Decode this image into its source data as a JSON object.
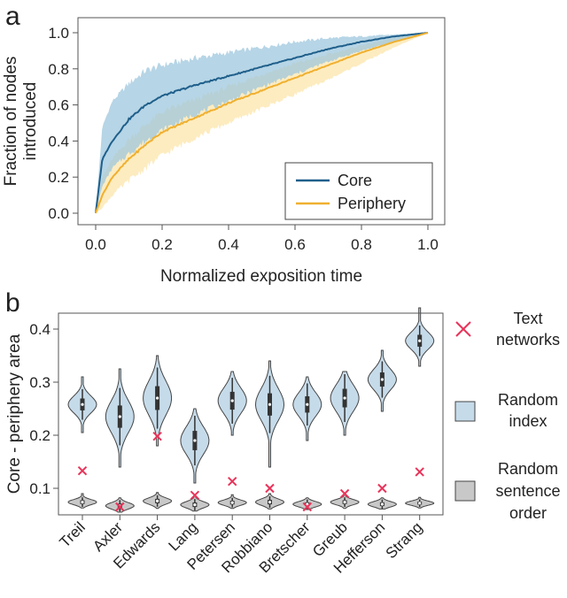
{
  "chart_data": [
    {
      "panel_label": "a",
      "type": "line",
      "xlabel": "Normalized exposition time",
      "ylabel_lines": [
        "Fraction of nodes",
        "introduced"
      ],
      "xlim": [
        0,
        1
      ],
      "ylim": [
        0,
        1
      ],
      "xticks": [
        "0.0",
        "0.2",
        "0.4",
        "0.6",
        "0.8",
        "1.0"
      ],
      "yticks": [
        "0.0",
        "0.2",
        "0.4",
        "0.6",
        "0.8",
        "1.0"
      ],
      "x": [
        0,
        0.02,
        0.05,
        0.1,
        0.15,
        0.2,
        0.3,
        0.4,
        0.5,
        0.6,
        0.7,
        0.8,
        0.9,
        1.0
      ],
      "series": [
        {
          "name": "Core",
          "color": "#1f5f8b",
          "band_color": "#9ec7de",
          "values": [
            0,
            0.3,
            0.4,
            0.52,
            0.6,
            0.65,
            0.71,
            0.76,
            0.81,
            0.86,
            0.91,
            0.95,
            0.98,
            1.0
          ],
          "lower": [
            0,
            0.15,
            0.25,
            0.33,
            0.4,
            0.46,
            0.55,
            0.62,
            0.7,
            0.77,
            0.84,
            0.9,
            0.95,
            1.0
          ],
          "upper": [
            0,
            0.48,
            0.62,
            0.72,
            0.79,
            0.82,
            0.86,
            0.89,
            0.92,
            0.95,
            0.97,
            0.98,
            0.99,
            1.0
          ]
        },
        {
          "name": "Periphery",
          "color": "#f0b030",
          "band_color": "#fde7b0",
          "values": [
            0,
            0.1,
            0.2,
            0.3,
            0.38,
            0.45,
            0.53,
            0.61,
            0.68,
            0.75,
            0.82,
            0.89,
            0.95,
            1.0
          ],
          "lower": [
            0,
            0.03,
            0.1,
            0.18,
            0.25,
            0.32,
            0.42,
            0.5,
            0.58,
            0.66,
            0.74,
            0.83,
            0.92,
            1.0
          ],
          "upper": [
            0,
            0.2,
            0.3,
            0.41,
            0.49,
            0.56,
            0.63,
            0.7,
            0.77,
            0.83,
            0.88,
            0.93,
            0.97,
            1.0
          ]
        }
      ],
      "legend_position": "lower-right"
    },
    {
      "panel_label": "b",
      "type": "violin",
      "ylabel": "Core - periphery area",
      "ylim": [
        0.05,
        0.43
      ],
      "yticks": [
        "0.1",
        "0.2",
        "0.3",
        "0.4"
      ],
      "categories": [
        "Treil",
        "Axler",
        "Edwards",
        "Lang",
        "Petersen",
        "Robbiano",
        "Bretscher",
        "Greub",
        "Hefferson",
        "Strang"
      ],
      "text_networks": {
        "name_lines": [
          "Text",
          "networks"
        ],
        "marker": "x",
        "color": "#e8345a",
        "values": [
          0.133,
          0.065,
          0.198,
          0.087,
          0.113,
          0.1,
          0.065,
          0.09,
          0.1,
          0.131
        ]
      },
      "random_index": {
        "name_lines": [
          "Random",
          "index"
        ],
        "color": "#c6dbea",
        "mean": [
          0.258,
          0.235,
          0.27,
          0.19,
          0.265,
          0.258,
          0.258,
          0.27,
          0.305,
          0.378
        ],
        "sd": [
          0.016,
          0.03,
          0.032,
          0.026,
          0.024,
          0.03,
          0.022,
          0.025,
          0.019,
          0.016
        ],
        "min": [
          0.205,
          0.14,
          0.18,
          0.11,
          0.2,
          0.14,
          0.19,
          0.2,
          0.245,
          0.33
        ],
        "max": [
          0.31,
          0.325,
          0.35,
          0.25,
          0.32,
          0.34,
          0.31,
          0.32,
          0.36,
          0.44
        ]
      },
      "random_sentence_order": {
        "name_lines": [
          "Random",
          "sentence",
          "order"
        ],
        "color": "#c8c8c8",
        "mean": [
          0.074,
          0.067,
          0.076,
          0.069,
          0.073,
          0.074,
          0.07,
          0.074,
          0.07,
          0.072
        ],
        "sd": [
          0.005,
          0.006,
          0.006,
          0.006,
          0.005,
          0.006,
          0.005,
          0.005,
          0.005,
          0.004
        ],
        "min": [
          0.063,
          0.055,
          0.062,
          0.057,
          0.062,
          0.061,
          0.06,
          0.062,
          0.061,
          0.063
        ],
        "max": [
          0.09,
          0.082,
          0.092,
          0.085,
          0.088,
          0.09,
          0.082,
          0.089,
          0.082,
          0.083
        ]
      }
    }
  ]
}
